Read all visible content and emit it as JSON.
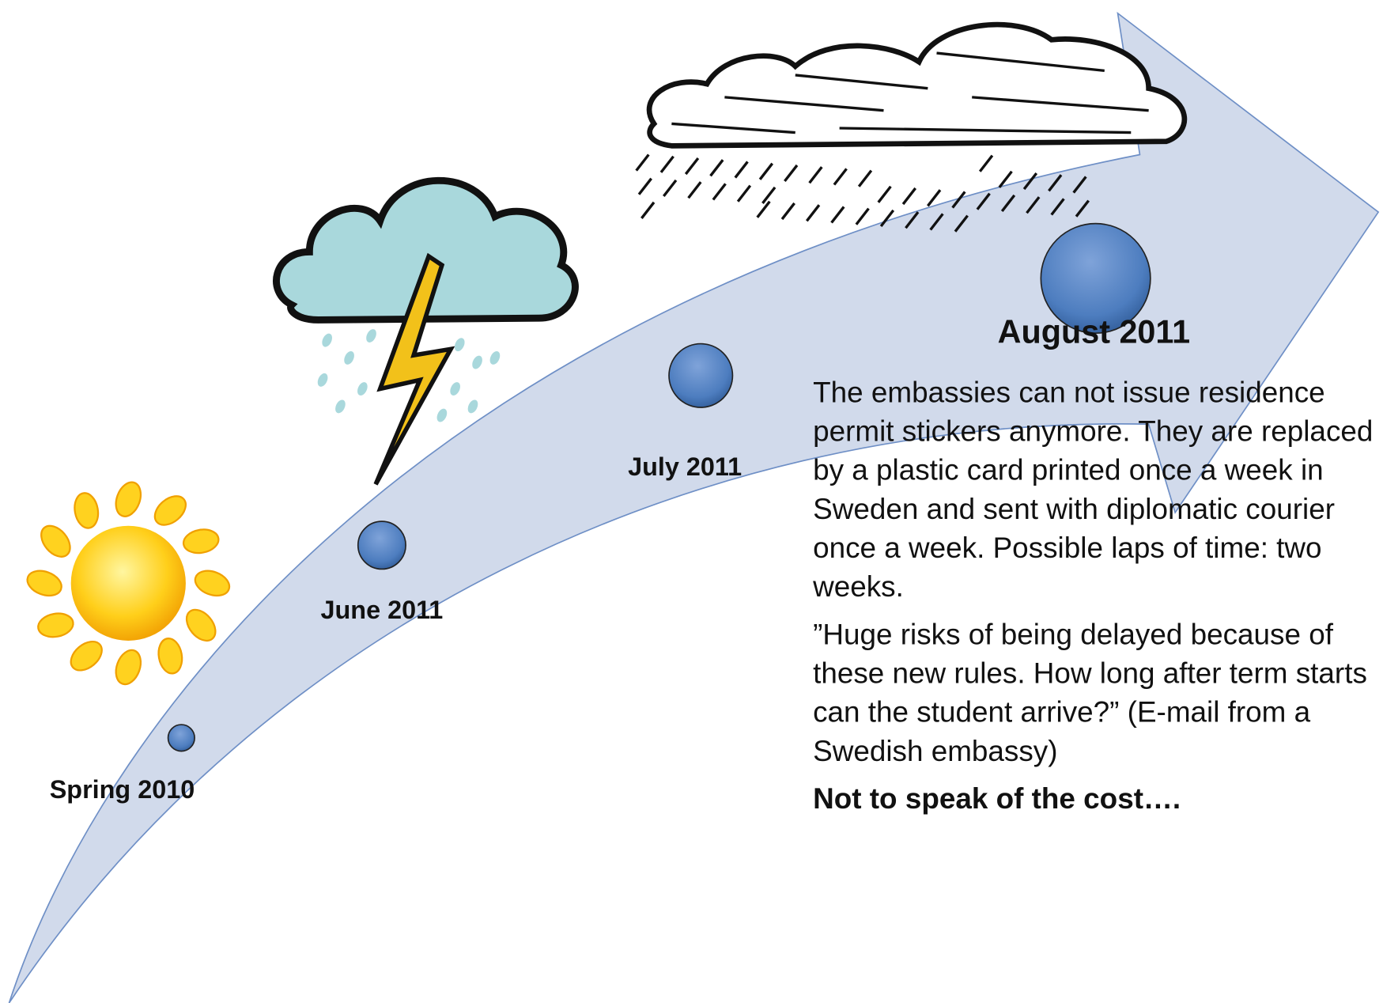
{
  "timeline": {
    "milestones": [
      {
        "label": "Spring 2010"
      },
      {
        "label": "June 2011"
      },
      {
        "label": "July 2011"
      },
      {
        "label": "August 2011"
      }
    ]
  },
  "description": {
    "paragraphs": [
      "The embassies can not issue residence permit stickers anymore. They are replaced by a plastic card printed once a week in Sweden and sent with diplomatic courier once a week. Possible laps of time: two weeks.",
      "”Huge risks of being delayed because of these new rules. How long after term starts can the student arrive?” (E-mail from a Swedish embassy)"
    ],
    "closing": "Not to speak of the cost…."
  }
}
